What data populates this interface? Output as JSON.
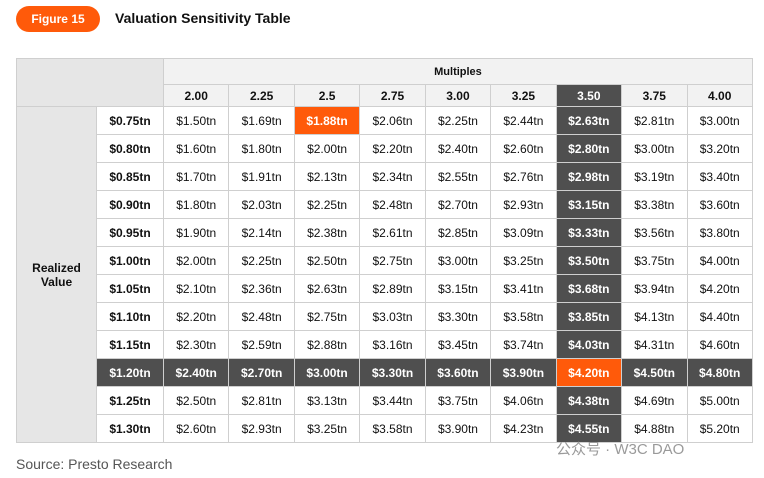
{
  "header": {
    "figure_label": "Figure 15",
    "title": "Valuation Sensitivity Table"
  },
  "table": {
    "column_group": "Multiples",
    "row_group": "Realized Value",
    "columns": [
      "2.00",
      "2.25",
      "2.5",
      "2.75",
      "3.00",
      "3.25",
      "3.50",
      "3.75",
      "4.00"
    ],
    "rows": [
      {
        "label": "$0.75tn",
        "cells": [
          "$1.50tn",
          "$1.69tn",
          "$1.88tn",
          "$2.06tn",
          "$2.25tn",
          "$2.44tn",
          "$2.63tn",
          "$2.81tn",
          "$3.00tn"
        ]
      },
      {
        "label": "$0.80tn",
        "cells": [
          "$1.60tn",
          "$1.80tn",
          "$2.00tn",
          "$2.20tn",
          "$2.40tn",
          "$2.60tn",
          "$2.80tn",
          "$3.00tn",
          "$3.20tn"
        ]
      },
      {
        "label": "$0.85tn",
        "cells": [
          "$1.70tn",
          "$1.91tn",
          "$2.13tn",
          "$2.34tn",
          "$2.55tn",
          "$2.76tn",
          "$2.98tn",
          "$3.19tn",
          "$3.40tn"
        ]
      },
      {
        "label": "$0.90tn",
        "cells": [
          "$1.80tn",
          "$2.03tn",
          "$2.25tn",
          "$2.48tn",
          "$2.70tn",
          "$2.93tn",
          "$3.15tn",
          "$3.38tn",
          "$3.60tn"
        ]
      },
      {
        "label": "$0.95tn",
        "cells": [
          "$1.90tn",
          "$2.14tn",
          "$2.38tn",
          "$2.61tn",
          "$2.85tn",
          "$3.09tn",
          "$3.33tn",
          "$3.56tn",
          "$3.80tn"
        ]
      },
      {
        "label": "$1.00tn",
        "cells": [
          "$2.00tn",
          "$2.25tn",
          "$2.50tn",
          "$2.75tn",
          "$3.00tn",
          "$3.25tn",
          "$3.50tn",
          "$3.75tn",
          "$4.00tn"
        ]
      },
      {
        "label": "$1.05tn",
        "cells": [
          "$2.10tn",
          "$2.36tn",
          "$2.63tn",
          "$2.89tn",
          "$3.15tn",
          "$3.41tn",
          "$3.68tn",
          "$3.94tn",
          "$4.20tn"
        ]
      },
      {
        "label": "$1.10tn",
        "cells": [
          "$2.20tn",
          "$2.48tn",
          "$2.75tn",
          "$3.03tn",
          "$3.30tn",
          "$3.58tn",
          "$3.85tn",
          "$4.13tn",
          "$4.40tn"
        ]
      },
      {
        "label": "$1.15tn",
        "cells": [
          "$2.30tn",
          "$2.59tn",
          "$2.88tn",
          "$3.16tn",
          "$3.45tn",
          "$3.74tn",
          "$4.03tn",
          "$4.31tn",
          "$4.60tn"
        ]
      },
      {
        "label": "$1.20tn",
        "cells": [
          "$2.40tn",
          "$2.70tn",
          "$3.00tn",
          "$3.30tn",
          "$3.60tn",
          "$3.90tn",
          "$4.20tn",
          "$4.50tn",
          "$4.80tn"
        ]
      },
      {
        "label": "$1.25tn",
        "cells": [
          "$2.50tn",
          "$2.81tn",
          "$3.13tn",
          "$3.44tn",
          "$3.75tn",
          "$4.06tn",
          "$4.38tn",
          "$4.69tn",
          "$5.00tn"
        ]
      },
      {
        "label": "$1.30tn",
        "cells": [
          "$2.60tn",
          "$2.93tn",
          "$3.25tn",
          "$3.58tn",
          "$3.90tn",
          "$4.23tn",
          "$4.55tn",
          "$4.88tn",
          "$5.20tn"
        ]
      }
    ],
    "highlight": {
      "dark_column": 6,
      "dark_row": 9,
      "accent_cells": [
        [
          0,
          2
        ],
        [
          9,
          6
        ]
      ],
      "dark_color": "#4f4f4f",
      "accent_color": "#ff5a0a"
    }
  },
  "footer": {
    "source": "Source: Presto Research",
    "watermark": "公众号 · W3C DAO"
  }
}
